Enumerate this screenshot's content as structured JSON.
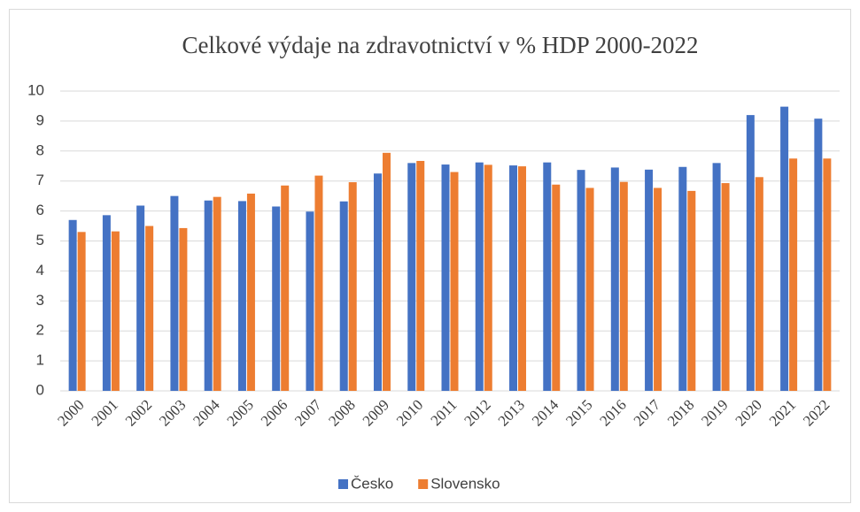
{
  "chart_data": {
    "type": "bar",
    "title": "Celkové výdaje na zdravotnictví  v % HDP 2000-2022",
    "categories": [
      "2000",
      "2001",
      "2002",
      "2003",
      "2004",
      "2005",
      "2006",
      "2007",
      "2008",
      "2009",
      "2010",
      "2011",
      "2012",
      "2013",
      "2014",
      "2015",
      "2016",
      "2017",
      "2018",
      "2019",
      "2020",
      "2021",
      "2022"
    ],
    "series": [
      {
        "name": "Česko",
        "color": "#4472c4",
        "values": [
          5.7,
          5.86,
          6.18,
          6.5,
          6.35,
          6.33,
          6.15,
          5.98,
          6.32,
          7.25,
          7.6,
          7.55,
          7.62,
          7.52,
          7.62,
          7.37,
          7.45,
          7.38,
          7.47,
          7.6,
          9.2,
          9.48,
          9.08
        ]
      },
      {
        "name": "Slovensko",
        "color": "#ed7d31",
        "values": [
          5.3,
          5.32,
          5.5,
          5.43,
          6.47,
          6.58,
          6.85,
          7.18,
          6.96,
          7.94,
          7.67,
          7.3,
          7.54,
          7.49,
          6.88,
          6.77,
          6.97,
          6.77,
          6.67,
          6.93,
          7.13,
          7.75,
          7.75
        ]
      }
    ],
    "ylim": [
      0,
      10
    ],
    "yticks": [
      0,
      1,
      2,
      3,
      4,
      5,
      6,
      7,
      8,
      9,
      10
    ],
    "grid": true,
    "legend": "bottom"
  }
}
